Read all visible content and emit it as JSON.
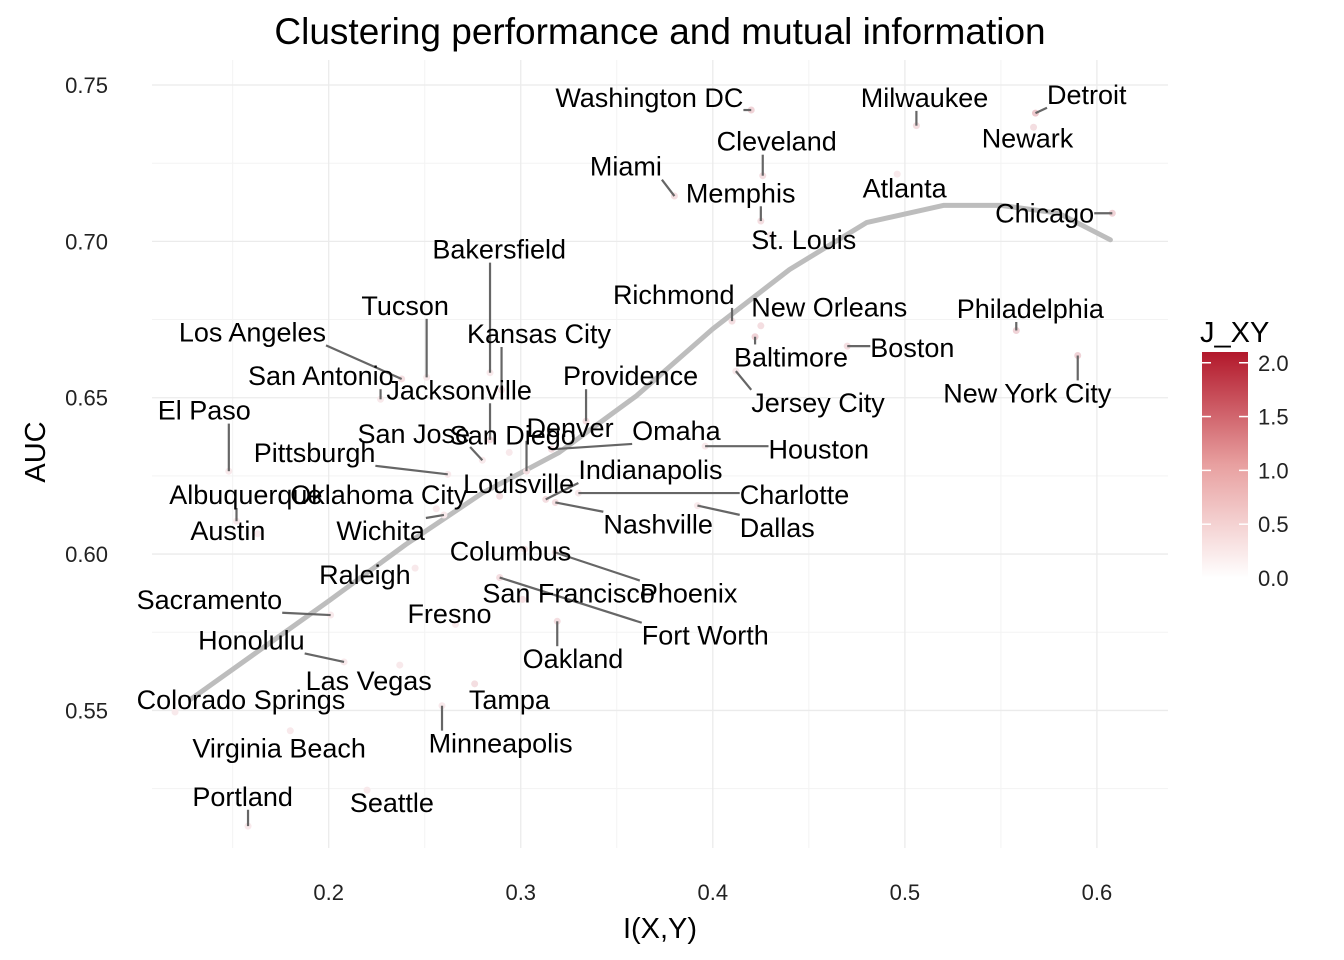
{
  "chart_data": {
    "type": "scatter",
    "title": "Clustering performance and mutual information",
    "xlabel": "I(X,Y)",
    "ylabel": "AUC",
    "xlim": [
      0.108,
      0.637
    ],
    "ylim": [
      0.506,
      0.758
    ],
    "xticks": [
      0.2,
      0.3,
      0.4,
      0.5,
      0.6
    ],
    "xtick_labels": [
      "0.2",
      "0.3",
      "0.4",
      "0.5",
      "0.6"
    ],
    "yticks": [
      0.55,
      0.6,
      0.65,
      0.7,
      0.75
    ],
    "ytick_labels": [
      "0.55",
      "0.60",
      "0.65",
      "0.70",
      "0.75"
    ],
    "grid": true,
    "legend": {
      "title": "J_XY",
      "position": "right",
      "type": "gradient",
      "range": [
        0,
        2.1
      ],
      "ticks": [
        0,
        0.5,
        1.0,
        1.5,
        2.0
      ],
      "tick_labels": [
        "0.0",
        "0.5",
        "1.0",
        "1.5",
        "2.0"
      ],
      "color_low": "#ffffff",
      "color_high": "#b2182b"
    },
    "smooth": {
      "color": "#bdbdbd",
      "x": [
        0.128,
        0.16,
        0.2,
        0.24,
        0.28,
        0.3,
        0.32,
        0.36,
        0.4,
        0.44,
        0.48,
        0.52,
        0.55,
        0.58,
        0.607
      ],
      "y": [
        0.5535,
        0.5675,
        0.585,
        0.603,
        0.6195,
        0.626,
        0.6325,
        0.6505,
        0.672,
        0.691,
        0.706,
        0.7115,
        0.7115,
        0.709,
        0.7005
      ]
    },
    "points": [
      {
        "name": "Washington DC",
        "x": 0.42,
        "y": 0.742,
        "j": 0.4,
        "lx": 0.318,
        "ly": 0.743,
        "anchor": "start"
      },
      {
        "name": "Milwaukee",
        "x": 0.506,
        "y": 0.737,
        "j": 0.3,
        "lx": 0.477,
        "ly": 0.743,
        "anchor": "start"
      },
      {
        "name": "Detroit",
        "x": 0.568,
        "y": 0.741,
        "j": 0.5,
        "lx": 0.574,
        "ly": 0.744,
        "anchor": "start"
      },
      {
        "name": "Newark",
        "x": 0.567,
        "y": 0.7365,
        "j": 0.3,
        "lx": 0.54,
        "ly": 0.73,
        "anchor": "start"
      },
      {
        "name": "Cleveland",
        "x": 0.426,
        "y": 0.721,
        "j": 0.3,
        "lx": 0.402,
        "ly": 0.729,
        "anchor": "start"
      },
      {
        "name": "Miami",
        "x": 0.38,
        "y": 0.7145,
        "j": 0.3,
        "lx": 0.336,
        "ly": 0.721,
        "anchor": "start"
      },
      {
        "name": "Atlanta",
        "x": 0.496,
        "y": 0.7215,
        "j": 0.2,
        "lx": 0.478,
        "ly": 0.714,
        "anchor": "start"
      },
      {
        "name": "Memphis",
        "x": 0.425,
        "y": 0.7065,
        "j": 0.3,
        "lx": 0.386,
        "ly": 0.7125,
        "anchor": "start"
      },
      {
        "name": "Chicago",
        "x": 0.608,
        "y": 0.709,
        "j": 0.4,
        "lx": 0.547,
        "ly": 0.706,
        "anchor": "start"
      },
      {
        "name": "St. Louis",
        "x": 0.43,
        "y": 0.702,
        "j": 0.2,
        "lx": 0.42,
        "ly": 0.6975,
        "anchor": "start"
      },
      {
        "name": "Bakersfield",
        "x": 0.284,
        "y": 0.658,
        "j": 0.2,
        "lx": 0.254,
        "ly": 0.6945,
        "anchor": "start"
      },
      {
        "name": "Richmond",
        "x": 0.41,
        "y": 0.6745,
        "j": 0.3,
        "lx": 0.348,
        "ly": 0.68,
        "anchor": "start"
      },
      {
        "name": "New Orleans",
        "x": 0.425,
        "y": 0.673,
        "j": 0.3,
        "lx": 0.42,
        "ly": 0.676,
        "anchor": "start"
      },
      {
        "name": "Tucson",
        "x": 0.251,
        "y": 0.6565,
        "j": 0.2,
        "lx": 0.217,
        "ly": 0.6765,
        "anchor": "start"
      },
      {
        "name": "Philadelphia",
        "x": 0.558,
        "y": 0.6715,
        "j": 0.4,
        "lx": 0.527,
        "ly": 0.6755,
        "anchor": "start"
      },
      {
        "name": "Los Angeles",
        "x": 0.238,
        "y": 0.656,
        "j": 0.3,
        "lx": 0.122,
        "ly": 0.668,
        "anchor": "start"
      },
      {
        "name": "Kansas City",
        "x": 0.29,
        "y": 0.6525,
        "j": 0.3,
        "lx": 0.272,
        "ly": 0.6675,
        "anchor": "start"
      },
      {
        "name": "Boston",
        "x": 0.47,
        "y": 0.6665,
        "j": 0.3,
        "lx": 0.482,
        "ly": 0.663,
        "anchor": "start"
      },
      {
        "name": "Baltimore",
        "x": 0.422,
        "y": 0.6695,
        "j": 0.4,
        "lx": 0.411,
        "ly": 0.66,
        "anchor": "start"
      },
      {
        "name": "New York City",
        "x": 0.59,
        "y": 0.6635,
        "j": 0.4,
        "lx": 0.52,
        "ly": 0.6485,
        "anchor": "start"
      },
      {
        "name": "Providence",
        "x": 0.334,
        "y": 0.6425,
        "j": 0.3,
        "lx": 0.322,
        "ly": 0.654,
        "anchor": "start"
      },
      {
        "name": "San Antonio",
        "x": 0.227,
        "y": 0.6495,
        "j": 0.2,
        "lx": 0.158,
        "ly": 0.654,
        "anchor": "start"
      },
      {
        "name": "Jacksonville",
        "x": 0.284,
        "y": 0.6365,
        "j": 0.3,
        "lx": 0.23,
        "ly": 0.6495,
        "anchor": "start"
      },
      {
        "name": "Jersey City",
        "x": 0.412,
        "y": 0.6585,
        "j": 0.2,
        "lx": 0.42,
        "ly": 0.6455,
        "anchor": "start"
      },
      {
        "name": "El Paso",
        "x": 0.148,
        "y": 0.6265,
        "j": 0.2,
        "lx": 0.111,
        "ly": 0.643,
        "anchor": "start"
      },
      {
        "name": "San Jose",
        "x": 0.28,
        "y": 0.63,
        "j": 0.2,
        "lx": 0.215,
        "ly": 0.6355,
        "anchor": "start"
      },
      {
        "name": "San Diego",
        "x": 0.294,
        "y": 0.6325,
        "j": 0.2,
        "lx": 0.263,
        "ly": 0.635,
        "anchor": "start"
      },
      {
        "name": "Denver",
        "x": 0.303,
        "y": 0.6265,
        "j": 0.3,
        "lx": 0.303,
        "ly": 0.6375,
        "anchor": "start"
      },
      {
        "name": "Omaha",
        "x": 0.316,
        "y": 0.6335,
        "j": 0.3,
        "lx": 0.358,
        "ly": 0.6365,
        "anchor": "start"
      },
      {
        "name": "Houston",
        "x": 0.396,
        "y": 0.6345,
        "j": 0.2,
        "lx": 0.429,
        "ly": 0.6305,
        "anchor": "start"
      },
      {
        "name": "Pittsburgh",
        "x": 0.262,
        "y": 0.6255,
        "j": 0.2,
        "lx": 0.161,
        "ly": 0.6295,
        "anchor": "start"
      },
      {
        "name": "Indianapolis",
        "x": 0.313,
        "y": 0.6175,
        "j": 0.3,
        "lx": 0.33,
        "ly": 0.624,
        "anchor": "start"
      },
      {
        "name": "Louisville",
        "x": 0.289,
        "y": 0.6185,
        "j": 0.3,
        "lx": 0.27,
        "ly": 0.6195,
        "anchor": "start"
      },
      {
        "name": "Albuquerque",
        "x": 0.152,
        "y": 0.6105,
        "j": 0.2,
        "lx": 0.117,
        "ly": 0.616,
        "anchor": "start"
      },
      {
        "name": "Oklahoma City",
        "x": 0.256,
        "y": 0.6145,
        "j": 0.2,
        "lx": 0.18,
        "ly": 0.616,
        "anchor": "start"
      },
      {
        "name": "Charlotte",
        "x": 0.33,
        "y": 0.6195,
        "j": 0.2,
        "lx": 0.414,
        "ly": 0.616,
        "anchor": "start"
      },
      {
        "name": "Nashville",
        "x": 0.318,
        "y": 0.6165,
        "j": 0.3,
        "lx": 0.343,
        "ly": 0.6065,
        "anchor": "start"
      },
      {
        "name": "Dallas",
        "x": 0.392,
        "y": 0.6155,
        "j": 0.2,
        "lx": 0.414,
        "ly": 0.6055,
        "anchor": "start"
      },
      {
        "name": "Austin",
        "x": 0.163,
        "y": 0.6065,
        "j": 0.2,
        "lx": 0.128,
        "ly": 0.6045,
        "anchor": "start"
      },
      {
        "name": "Wichita",
        "x": 0.26,
        "y": 0.6125,
        "j": 0.2,
        "lx": 0.204,
        "ly": 0.6045,
        "anchor": "start"
      },
      {
        "name": "Columbus",
        "x": 0.302,
        "y": 0.6015,
        "j": 0.3,
        "lx": 0.263,
        "ly": 0.598,
        "anchor": "start"
      },
      {
        "name": "Raleigh",
        "x": 0.245,
        "y": 0.5955,
        "j": 0.2,
        "lx": 0.195,
        "ly": 0.5905,
        "anchor": "start"
      },
      {
        "name": "San Francisco",
        "x": 0.301,
        "y": 0.5855,
        "j": 0.3,
        "lx": 0.28,
        "ly": 0.5845,
        "anchor": "start"
      },
      {
        "name": "Phoenix",
        "x": 0.318,
        "y": 0.6005,
        "j": 0.3,
        "lx": 0.362,
        "ly": 0.5845,
        "anchor": "start"
      },
      {
        "name": "Sacramento",
        "x": 0.201,
        "y": 0.5805,
        "j": 0.2,
        "lx": 0.1,
        "ly": 0.5825,
        "anchor": "start"
      },
      {
        "name": "Fresno",
        "x": 0.266,
        "y": 0.5775,
        "j": 0.2,
        "lx": 0.241,
        "ly": 0.578,
        "anchor": "start"
      },
      {
        "name": "Fort Worth",
        "x": 0.289,
        "y": 0.5925,
        "j": 0.3,
        "lx": 0.363,
        "ly": 0.571,
        "anchor": "start"
      },
      {
        "name": "Honolulu",
        "x": 0.208,
        "y": 0.5655,
        "j": 0.2,
        "lx": 0.132,
        "ly": 0.5695,
        "anchor": "start"
      },
      {
        "name": "Oakland",
        "x": 0.319,
        "y": 0.5785,
        "j": 0.3,
        "lx": 0.301,
        "ly": 0.5635,
        "anchor": "start"
      },
      {
        "name": "Las Vegas",
        "x": 0.237,
        "y": 0.5645,
        "j": 0.2,
        "lx": 0.188,
        "ly": 0.5565,
        "anchor": "start"
      },
      {
        "name": "Colorado Springs",
        "x": 0.12,
        "y": 0.5495,
        "j": 0.2,
        "lx": 0.1,
        "ly": 0.5505,
        "anchor": "start"
      },
      {
        "name": "Tampa",
        "x": 0.276,
        "y": 0.5585,
        "j": 0.3,
        "lx": 0.273,
        "ly": 0.5505,
        "anchor": "start"
      },
      {
        "name": "Virginia Beach",
        "x": 0.18,
        "y": 0.5435,
        "j": 0.2,
        "lx": 0.129,
        "ly": 0.535,
        "anchor": "start"
      },
      {
        "name": "Minneapolis",
        "x": 0.259,
        "y": 0.5515,
        "j": 0.2,
        "lx": 0.252,
        "ly": 0.5365,
        "anchor": "start"
      },
      {
        "name": "Portland",
        "x": 0.158,
        "y": 0.513,
        "j": 0.2,
        "lx": 0.129,
        "ly": 0.5195,
        "anchor": "start"
      },
      {
        "name": "Seattle",
        "x": 0.22,
        "y": 0.5245,
        "j": 0.2,
        "lx": 0.211,
        "ly": 0.5175,
        "anchor": "start"
      }
    ]
  }
}
